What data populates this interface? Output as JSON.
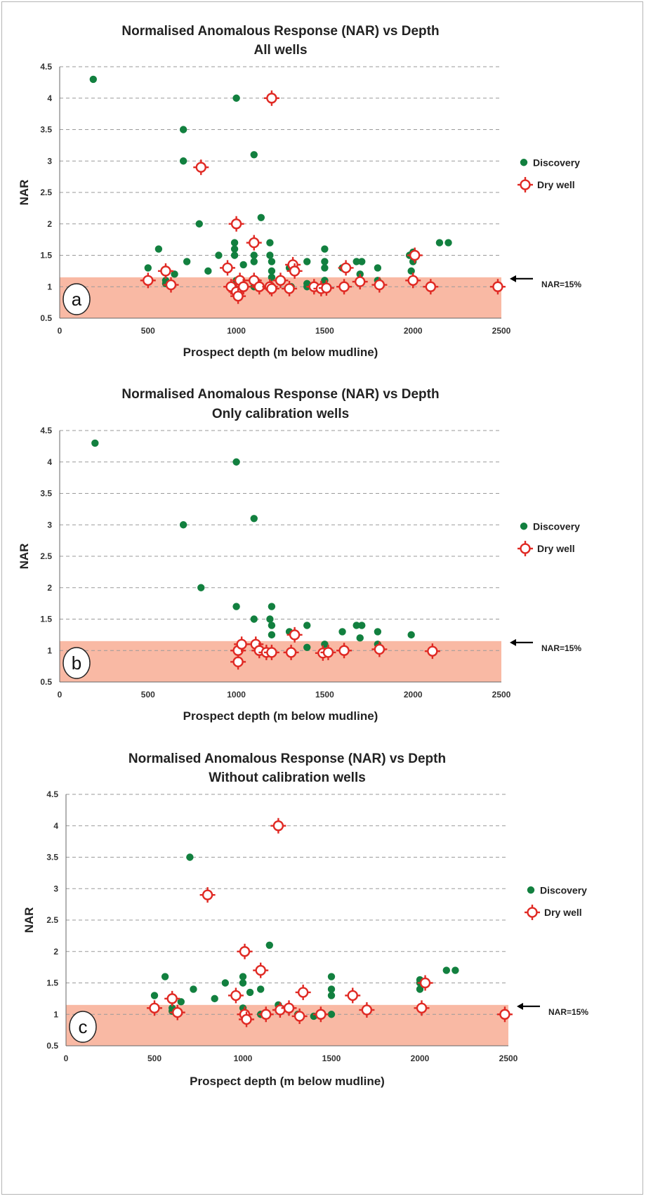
{
  "figure": {
    "shading_color": "#f9b9a4",
    "discovery_color": "#12803f",
    "dry_color": "#e02a24",
    "grid_color": "#9a9a9a"
  },
  "chart_data": [
    {
      "type": "scatter",
      "title": "Normalised Anomalous Response (NAR) vs Depth",
      "subtitle": "All wells",
      "xlabel": "Prospect depth (m below mudline)",
      "ylabel": "NAR",
      "xlim": [
        0,
        2500
      ],
      "ylim": [
        0.5,
        4.5
      ],
      "xticks": [
        "0",
        "500",
        "1000",
        "1500",
        "2000",
        "2500"
      ],
      "yticks": [
        "0.5",
        "1",
        "1.5",
        "2",
        "2.5",
        "3",
        "3.5",
        "4",
        "4.5"
      ],
      "grid": "horizontal dashed",
      "legend_position": "right",
      "panel_label": "a",
      "threshold": {
        "label": "NAR=15%",
        "y_top": 1.15
      },
      "series": [
        {
          "name": "Discovery",
          "marker": "dot",
          "points": [
            [
              190,
              4.3
            ],
            [
              700,
              3.5
            ],
            [
              700,
              3.0
            ],
            [
              790,
              2.0
            ],
            [
              1000,
              4.0
            ],
            [
              1100,
              3.1
            ],
            [
              1140,
              2.1
            ],
            [
              500,
              1.3
            ],
            [
              560,
              1.6
            ],
            [
              600,
              1.1
            ],
            [
              600,
              1.05
            ],
            [
              650,
              1.2
            ],
            [
              720,
              1.4
            ],
            [
              840,
              1.25
            ],
            [
              900,
              1.5
            ],
            [
              990,
              1.7
            ],
            [
              990,
              1.6
            ],
            [
              990,
              1.5
            ],
            [
              1000,
              1.1
            ],
            [
              1040,
              1.35
            ],
            [
              1100,
              1.4
            ],
            [
              1100,
              1.5
            ],
            [
              1100,
              1.0
            ],
            [
              1190,
              1.7
            ],
            [
              1190,
              1.5
            ],
            [
              1200,
              1.4
            ],
            [
              1200,
              1.25
            ],
            [
              1200,
              1.15
            ],
            [
              1300,
              1.3
            ],
            [
              1310,
              1.0
            ],
            [
              1400,
              1.4
            ],
            [
              1400,
              1.05
            ],
            [
              1400,
              1.0
            ],
            [
              1500,
              1.6
            ],
            [
              1500,
              1.4
            ],
            [
              1500,
              1.3
            ],
            [
              1500,
              1.1
            ],
            [
              1500,
              1.0
            ],
            [
              1600,
              1.3
            ],
            [
              1680,
              1.4
            ],
            [
              1710,
              1.4
            ],
            [
              1700,
              1.2
            ],
            [
              1800,
              1.3
            ],
            [
              1800,
              1.1
            ],
            [
              1980,
              1.5
            ],
            [
              2000,
              1.55
            ],
            [
              2000,
              1.4
            ],
            [
              1990,
              1.25
            ],
            [
              2150,
              1.7
            ],
            [
              2200,
              1.7
            ]
          ]
        },
        {
          "name": "Dry well",
          "marker": "crosshair",
          "points": [
            [
              1200,
              4.0
            ],
            [
              800,
              2.9
            ],
            [
              1000,
              2.0
            ],
            [
              1100,
              1.7
            ],
            [
              600,
              1.25
            ],
            [
              500,
              1.1
            ],
            [
              630,
              1.03
            ],
            [
              950,
              1.3
            ],
            [
              970,
              1.0
            ],
            [
              1000,
              0.92
            ],
            [
              1010,
              0.85
            ],
            [
              1020,
              1.1
            ],
            [
              1040,
              1.0
            ],
            [
              1100,
              1.1
            ],
            [
              1130,
              1.0
            ],
            [
              1190,
              1.0
            ],
            [
              1200,
              0.97
            ],
            [
              1250,
              1.1
            ],
            [
              1300,
              0.97
            ],
            [
              1320,
              1.35
            ],
            [
              1330,
              1.25
            ],
            [
              1440,
              1.0
            ],
            [
              1480,
              0.97
            ],
            [
              1510,
              0.98
            ],
            [
              1610,
              1.0
            ],
            [
              1620,
              1.3
            ],
            [
              1700,
              1.08
            ],
            [
              1810,
              1.03
            ],
            [
              2000,
              1.1
            ],
            [
              2010,
              1.5
            ],
            [
              2100,
              1.0
            ],
            [
              2480,
              1.0
            ]
          ]
        }
      ]
    },
    {
      "type": "scatter",
      "title": "Normalised Anomalous Response (NAR) vs Depth",
      "subtitle": "Only calibration wells",
      "xlabel": "Prospect depth (m below mudline)",
      "ylabel": "NAR",
      "xlim": [
        0,
        2500
      ],
      "ylim": [
        0.5,
        4.5
      ],
      "xticks": [
        "0",
        "500",
        "1000",
        "1500",
        "2000",
        "2500"
      ],
      "yticks": [
        "0.5",
        "1",
        "1.5",
        "2",
        "2.5",
        "3",
        "3.5",
        "4",
        "4.5"
      ],
      "grid": "horizontal dashed",
      "legend_position": "right",
      "panel_label": "b",
      "threshold": {
        "label": "NAR=15%",
        "y_top": 1.15
      },
      "series": [
        {
          "name": "Discovery",
          "marker": "dot",
          "points": [
            [
              200,
              4.3
            ],
            [
              1000,
              4.0
            ],
            [
              700,
              3.0
            ],
            [
              1100,
              3.1
            ],
            [
              800,
              2.0
            ],
            [
              1000,
              1.7
            ],
            [
              1100,
              1.5
            ],
            [
              1200,
              1.7
            ],
            [
              1190,
              1.5
            ],
            [
              1200,
              1.4
            ],
            [
              1200,
              1.25
            ],
            [
              1300,
              1.3
            ],
            [
              1400,
              1.4
            ],
            [
              1400,
              1.05
            ],
            [
              1500,
              1.1
            ],
            [
              1600,
              1.3
            ],
            [
              1680,
              1.4
            ],
            [
              1710,
              1.4
            ],
            [
              1700,
              1.2
            ],
            [
              1800,
              1.3
            ],
            [
              1800,
              1.1
            ],
            [
              1990,
              1.25
            ]
          ]
        },
        {
          "name": "Dry well",
          "marker": "crosshair",
          "points": [
            [
              1010,
              0.82
            ],
            [
              1010,
              1.0
            ],
            [
              1030,
              1.1
            ],
            [
              1110,
              1.1
            ],
            [
              1130,
              1.0
            ],
            [
              1170,
              0.97
            ],
            [
              1200,
              0.97
            ],
            [
              1310,
              0.97
            ],
            [
              1330,
              1.25
            ],
            [
              1490,
              0.96
            ],
            [
              1520,
              0.97
            ],
            [
              1610,
              1.0
            ],
            [
              1810,
              1.02
            ],
            [
              2110,
              0.99
            ]
          ]
        }
      ]
    },
    {
      "type": "scatter",
      "title": "Normalised Anomalous Response (NAR) vs Depth",
      "subtitle": "Without calibration wells",
      "xlabel": "Prospect depth (m below mudline)",
      "ylabel": "NAR",
      "xlim": [
        0,
        2500
      ],
      "ylim": [
        0.5,
        4.5
      ],
      "xticks": [
        "0",
        "500",
        "1000",
        "1500",
        "2000",
        "2500"
      ],
      "yticks": [
        "0.5",
        "1",
        "1.5",
        "2",
        "2.5",
        "3",
        "3.5",
        "4",
        "4.5"
      ],
      "grid": "horizontal dashed",
      "legend_position": "right",
      "panel_label": "c",
      "threshold": {
        "label": "NAR=15%",
        "y_top": 1.15
      },
      "series": [
        {
          "name": "Discovery",
          "marker": "dot",
          "points": [
            [
              700,
              3.5
            ],
            [
              1150,
              2.1
            ],
            [
              500,
              1.3
            ],
            [
              560,
              1.6
            ],
            [
              600,
              1.1
            ],
            [
              600,
              1.05
            ],
            [
              650,
              1.2
            ],
            [
              720,
              1.4
            ],
            [
              840,
              1.25
            ],
            [
              900,
              1.5
            ],
            [
              1000,
              1.6
            ],
            [
              1000,
              1.5
            ],
            [
              1000,
              1.1
            ],
            [
              1040,
              1.35
            ],
            [
              1100,
              1.4
            ],
            [
              1100,
              1.0
            ],
            [
              1200,
              1.15
            ],
            [
              1310,
              1.0
            ],
            [
              1400,
              0.97
            ],
            [
              1500,
              1.6
            ],
            [
              1500,
              1.4
            ],
            [
              1500,
              1.3
            ],
            [
              1500,
              1.0
            ],
            [
              2000,
              1.55
            ],
            [
              2000,
              1.5
            ],
            [
              2000,
              1.4
            ],
            [
              2150,
              1.7
            ],
            [
              2200,
              1.7
            ]
          ]
        },
        {
          "name": "Dry well",
          "marker": "crosshair",
          "points": [
            [
              1200,
              4.0
            ],
            [
              800,
              2.9
            ],
            [
              1010,
              2.0
            ],
            [
              1100,
              1.7
            ],
            [
              600,
              1.25
            ],
            [
              500,
              1.1
            ],
            [
              630,
              1.03
            ],
            [
              960,
              1.3
            ],
            [
              1010,
              1.0
            ],
            [
              1020,
              0.92
            ],
            [
              1130,
              1.0
            ],
            [
              1210,
              1.07
            ],
            [
              1260,
              1.1
            ],
            [
              1320,
              0.97
            ],
            [
              1340,
              1.35
            ],
            [
              1440,
              1.0
            ],
            [
              1620,
              1.3
            ],
            [
              1700,
              1.07
            ],
            [
              2010,
              1.1
            ],
            [
              2030,
              1.5
            ],
            [
              2480,
              1.0
            ]
          ]
        }
      ]
    }
  ]
}
